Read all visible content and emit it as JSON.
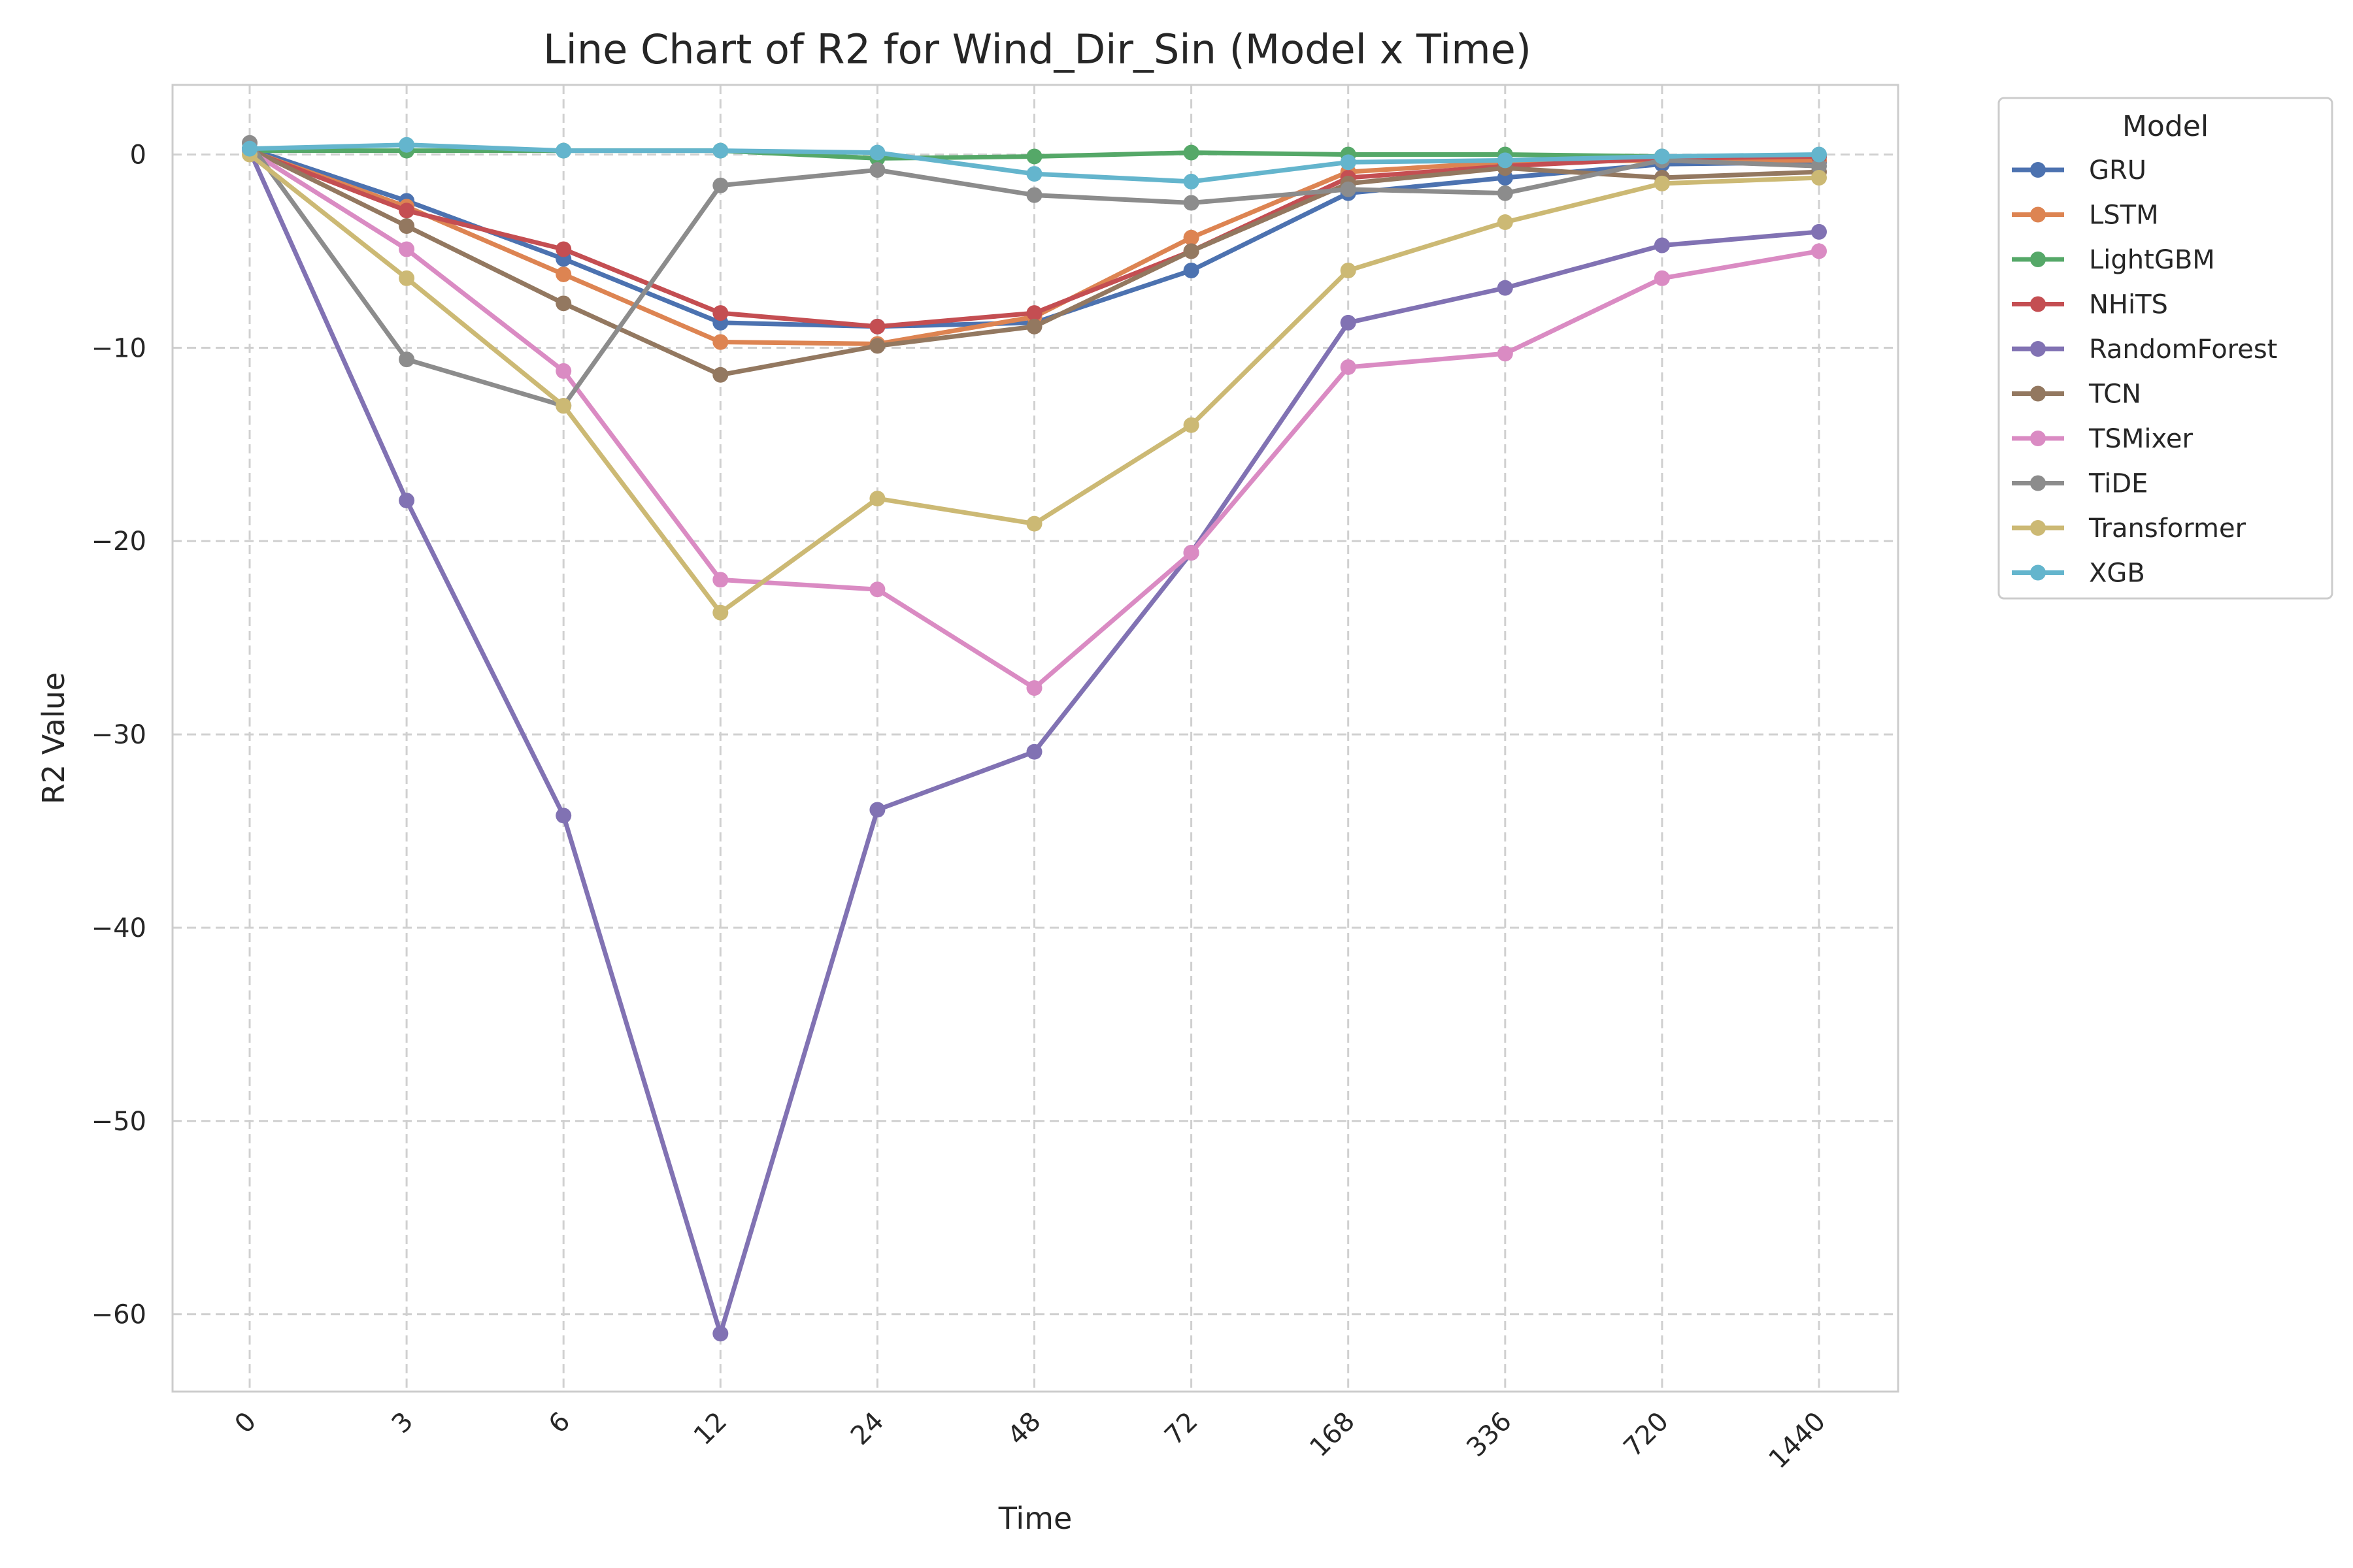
{
  "chart_data": {
    "type": "line",
    "title": "Line Chart of R2 for Wind_Dir_Sin (Model x Time)",
    "xlabel": "Time",
    "ylabel": "R2 Value",
    "categories": [
      "0",
      "3",
      "6",
      "12",
      "24",
      "48",
      "72",
      "168",
      "336",
      "720",
      "1440"
    ],
    "ylim": [
      -64,
      3.6
    ],
    "yticks": [
      0,
      -10,
      -20,
      -30,
      -40,
      -50,
      -60
    ],
    "ytick_labels": [
      "0",
      "−10",
      "−20",
      "−30",
      "−40",
      "−50",
      "−60"
    ],
    "grid": true,
    "legend": {
      "title": "Model",
      "placement": "outside-right-top"
    },
    "series": [
      {
        "name": "GRU",
        "color": "#4c72b0",
        "values": [
          0.3,
          -2.4,
          -5.4,
          -8.7,
          -8.9,
          -8.7,
          -6.0,
          -2.0,
          -1.2,
          -0.5,
          -0.4
        ]
      },
      {
        "name": "LSTM",
        "color": "#dd8452",
        "values": [
          0.2,
          -2.7,
          -6.2,
          -9.7,
          -9.8,
          -8.4,
          -4.3,
          -0.9,
          -0.4,
          -0.3,
          -0.3
        ]
      },
      {
        "name": "LightGBM",
        "color": "#55a868",
        "values": [
          0.2,
          0.2,
          0.2,
          0.2,
          -0.2,
          -0.1,
          0.1,
          0.0,
          0.0,
          -0.1,
          -0.1
        ]
      },
      {
        "name": "NHiTS",
        "color": "#c44e52",
        "values": [
          0.2,
          -2.9,
          -4.9,
          -8.2,
          -8.9,
          -8.2,
          -5.0,
          -1.2,
          -0.6,
          -0.2,
          -0.1
        ]
      },
      {
        "name": "RandomForest",
        "color": "#8172b3",
        "values": [
          0.2,
          -17.9,
          -34.2,
          -61.0,
          -33.9,
          -30.9,
          -20.6,
          -8.7,
          -6.9,
          -4.7,
          -4.0
        ]
      },
      {
        "name": "TCN",
        "color": "#937860",
        "values": [
          0.3,
          -3.7,
          -7.7,
          -11.4,
          -9.9,
          -8.9,
          -5.0,
          -1.5,
          -0.7,
          -1.2,
          -0.9
        ]
      },
      {
        "name": "TSMixer",
        "color": "#da8bc3",
        "values": [
          0.2,
          -4.9,
          -11.2,
          -22.0,
          -22.5,
          -27.6,
          -20.6,
          -11.0,
          -10.3,
          -6.4,
          -5.0
        ]
      },
      {
        "name": "TiDE",
        "color": "#8c8c8c",
        "values": [
          0.6,
          -10.6,
          -13.0,
          -1.6,
          -0.8,
          -2.1,
          -2.5,
          -1.8,
          -2.0,
          -0.3,
          -0.6
        ]
      },
      {
        "name": "Transformer",
        "color": "#ccb974",
        "values": [
          0.0,
          -6.4,
          -13.0,
          -23.7,
          -17.8,
          -19.1,
          -14.0,
          -6.0,
          -3.5,
          -1.5,
          -1.2
        ]
      },
      {
        "name": "XGB",
        "color": "#64b5cd",
        "values": [
          0.3,
          0.5,
          0.2,
          0.2,
          0.1,
          -1.0,
          -1.4,
          -0.4,
          -0.3,
          -0.1,
          0.0
        ]
      }
    ]
  }
}
